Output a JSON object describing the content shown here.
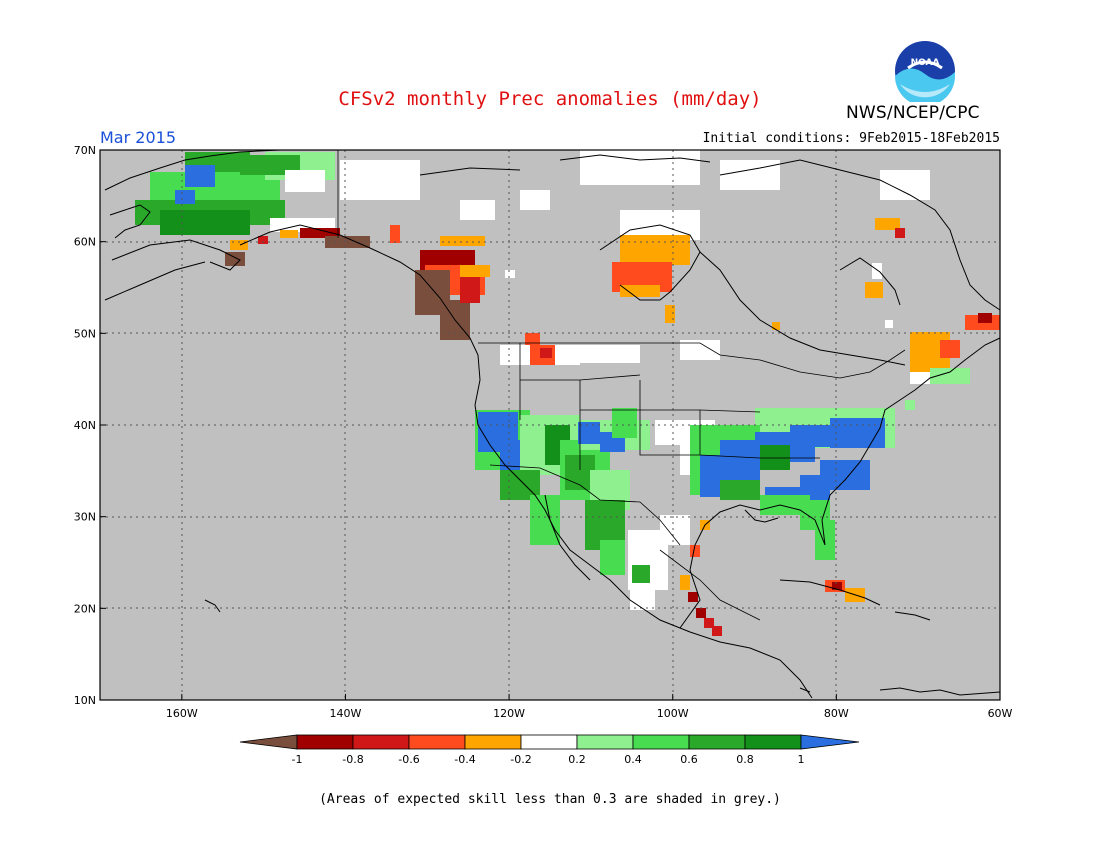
{
  "header": {
    "title": "CFSv2 monthly Prec anomalies (mm/day)",
    "agency": "NWS/NCEP/CPC",
    "logo_text": "NOAA",
    "month": "Mar 2015",
    "initial_conditions": "Initial conditions: 9Feb2015-18Feb2015"
  },
  "map": {
    "lon_range": [
      -170,
      -60
    ],
    "lat_range": [
      10,
      70
    ],
    "lat_labels": [
      "70N",
      "60N",
      "50N",
      "40N",
      "30N",
      "20N",
      "10N"
    ],
    "lon_labels": [
      "160W",
      "140W",
      "120W",
      "100W",
      "80W",
      "60W"
    ],
    "lat_values": [
      70,
      60,
      50,
      40,
      30,
      20,
      10
    ],
    "lon_values": [
      -160,
      -140,
      -120,
      -100,
      -80,
      -60
    ],
    "colors": {
      "skill_mask_grey": "#c0c0c0",
      "neutral_white": "#ffffff",
      "coastline": "#000000"
    }
  },
  "colorbar": {
    "labels": [
      "-1",
      "-0.8",
      "-0.6",
      "-0.4",
      "-0.2",
      "0.2",
      "0.4",
      "0.6",
      "0.8",
      "1"
    ],
    "colors": [
      "#7a4e3c",
      "#a00000",
      "#d01818",
      "#ff4b1e",
      "#ffa500",
      "#ffffff",
      "#8ff090",
      "#48dc50",
      "#2aa82a",
      "#13901a",
      "#2a6ee0"
    ]
  },
  "footnote": "(Areas of expected skill less than 0.3 are shaded in grey.)"
}
